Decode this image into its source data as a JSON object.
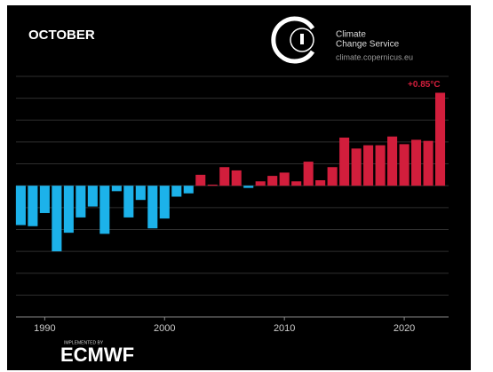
{
  "chart_data": {
    "type": "bar",
    "title": "OCTOBER",
    "x": [
      1988,
      1989,
      1990,
      1991,
      1992,
      1993,
      1994,
      1995,
      1996,
      1997,
      1998,
      1999,
      2000,
      2001,
      2002,
      2003,
      2004,
      2005,
      2006,
      2007,
      2008,
      2009,
      2010,
      2011,
      2012,
      2013,
      2014,
      2015,
      2016,
      2017,
      2018,
      2019,
      2020,
      2021,
      2022,
      2023
    ],
    "values": [
      -0.36,
      -0.37,
      -0.25,
      -0.6,
      -0.43,
      -0.29,
      -0.19,
      -0.44,
      -0.05,
      -0.29,
      -0.13,
      -0.39,
      -0.3,
      -0.1,
      -0.07,
      0.1,
      0.01,
      0.17,
      0.14,
      -0.02,
      0.04,
      0.09,
      0.12,
      0.04,
      0.22,
      0.05,
      0.17,
      0.44,
      0.34,
      0.37,
      0.37,
      0.45,
      0.38,
      0.42,
      0.41,
      0.85
    ],
    "value_labels": [
      null,
      null,
      null,
      null,
      null,
      null,
      null,
      null,
      null,
      null,
      null,
      null,
      null,
      null,
      null,
      null,
      null,
      null,
      null,
      null,
      null,
      null,
      null,
      null,
      null,
      null,
      null,
      null,
      null,
      null,
      null,
      null,
      null,
      null,
      null,
      "+0.85°C"
    ],
    "positive_color": "#d21e3c",
    "negative_color": "#1cb2ea",
    "xlim": [
      1987.6,
      2023.7
    ],
    "xticks": [
      1990,
      2000,
      2010,
      2020
    ],
    "ylim": [
      -1.2,
      1.0
    ],
    "yticks": [
      -1.2,
      -1.0,
      -0.8,
      -0.6,
      -0.4,
      -0.2,
      0,
      0.2,
      0.4,
      0.6,
      0.8,
      1.0
    ],
    "grid": true
  },
  "branding": {
    "service_line1": "Climate",
    "service_line2": "Change Service",
    "url": "climate.copernicus.eu",
    "implemented_by": "IMPLEMENTED BY",
    "ecmwf": "ECMWF"
  }
}
